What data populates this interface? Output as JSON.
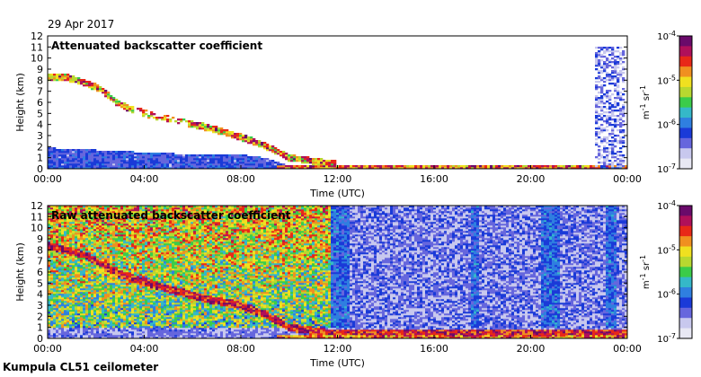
{
  "header": {
    "date": "29 Apr 2017"
  },
  "footer": {
    "instrument": "Kumpula CL51 ceilometer"
  },
  "colors": {
    "colormap": [
      "#e8e8f4",
      "#c8c8ee",
      "#6666dd",
      "#1a3ad8",
      "#2f7fe0",
      "#35b8c8",
      "#3bcc4a",
      "#b8d830",
      "#f0e020",
      "#f09020",
      "#e82818",
      "#b0105a",
      "#6a0a6a"
    ],
    "frame": "#000000",
    "background": "#ffffff"
  },
  "chart_data": [
    {
      "type": "heatmap",
      "title": "Attenuated backscatter coefficient",
      "xlabel": "Time (UTC)",
      "ylabel": "Height (km)",
      "x_tick_labels": [
        "00:00",
        "04:00",
        "08:00",
        "12:00",
        "16:00",
        "20:00",
        "00:00"
      ],
      "x_ticks_hours": [
        0,
        4,
        8,
        12,
        16,
        20,
        24
      ],
      "y_tick_labels": [
        "0",
        "1",
        "2",
        "3",
        "4",
        "5",
        "6",
        "7",
        "8",
        "9",
        "10",
        "11",
        "12"
      ],
      "xlim_hours": [
        0,
        24
      ],
      "ylim_km": [
        0,
        12
      ],
      "colorbar": {
        "scale": "log",
        "range": [
          1e-07,
          0.0001
        ],
        "tick_labels": [
          "10-4",
          "10-5",
          "10-6",
          "10-7"
        ],
        "unit": "m-1 sr-1"
      },
      "features": {
        "boundary_layer_top_km": [
          [
            0,
            1.9
          ],
          [
            2,
            1.7
          ],
          [
            4,
            1.5
          ],
          [
            6,
            1.3
          ],
          [
            8,
            1.3
          ],
          [
            9,
            1.0
          ],
          [
            10,
            0.3
          ],
          [
            12,
            0.2
          ],
          [
            16,
            0.15
          ],
          [
            20,
            0.1
          ],
          [
            22.5,
            0.1
          ],
          [
            24,
            0.1
          ]
        ],
        "descending_layer_km": [
          [
            0.7,
            8.3
          ],
          [
            1.5,
            7.8
          ],
          [
            2.2,
            7.2
          ],
          [
            2.8,
            6.1
          ],
          [
            3.3,
            5.5
          ],
          [
            4.5,
            4.7
          ],
          [
            6.5,
            3.8
          ],
          [
            7.5,
            3.2
          ],
          [
            8.5,
            2.5
          ],
          [
            9.3,
            1.8
          ],
          [
            10,
            1.0
          ],
          [
            12,
            0.4
          ]
        ],
        "precipitation_hours": [
          22.7,
          23.9
        ]
      }
    },
    {
      "type": "heatmap",
      "title": "Raw attenuated backscatter coefficient",
      "xlabel": "Time (UTC)",
      "ylabel": "Height (km)",
      "x_tick_labels": [
        "00:00",
        "04:00",
        "08:00",
        "12:00",
        "16:00",
        "20:00",
        "00:00"
      ],
      "x_ticks_hours": [
        0,
        4,
        8,
        12,
        16,
        20,
        24
      ],
      "y_tick_labels": [
        "0",
        "1",
        "2",
        "3",
        "4",
        "5",
        "6",
        "7",
        "8",
        "9",
        "10",
        "11",
        "12"
      ],
      "xlim_hours": [
        0,
        24
      ],
      "ylim_km": [
        0,
        12
      ],
      "colorbar": {
        "scale": "log",
        "range": [
          1e-07,
          0.0001
        ],
        "tick_labels": [
          "10-4",
          "10-5",
          "10-6",
          "10-7"
        ],
        "unit": "m-1 sr-1"
      },
      "features": {
        "daytime_noise_hours": [
          0,
          12
        ],
        "descending_layer_km": [
          [
            0,
            8.4
          ],
          [
            1.5,
            7.6
          ],
          [
            3,
            5.8
          ],
          [
            4.5,
            4.8
          ],
          [
            6.5,
            3.6
          ],
          [
            8,
            3.0
          ],
          [
            9,
            2.2
          ],
          [
            10,
            1.0
          ],
          [
            12,
            0.4
          ]
        ],
        "noise_columns_hours": [
          11.9,
          12.3,
          17.7,
          20.6,
          21.0,
          23.3
        ]
      }
    }
  ]
}
